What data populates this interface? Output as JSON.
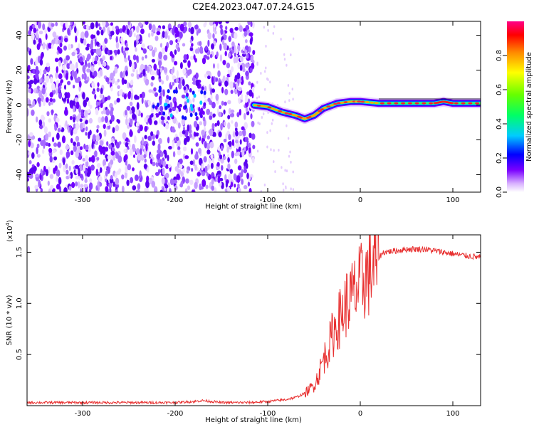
{
  "title": "C2E4.2023.047.07.24.G15",
  "chart_data": [
    {
      "type": "heatmap",
      "title": "C2E4.2023.047.07.24.G15",
      "xlabel": "Height of straight line (km)",
      "ylabel": "Frequency (Hz)",
      "xlim": [
        -360,
        130
      ],
      "ylim": [
        -50,
        48
      ],
      "xticks": [
        -300,
        -200,
        -100,
        0,
        100
      ],
      "yticks": [
        -40,
        -20,
        0,
        20,
        40
      ],
      "noise_region_x": [
        -360,
        -115
      ],
      "signal_track": [
        {
          "x": -115,
          "y": 0
        },
        {
          "x": -100,
          "y": -1
        },
        {
          "x": -85,
          "y": -4
        },
        {
          "x": -70,
          "y": -6
        },
        {
          "x": -60,
          "y": -8
        },
        {
          "x": -50,
          "y": -6
        },
        {
          "x": -40,
          "y": -2
        },
        {
          "x": -25,
          "y": 1
        },
        {
          "x": -10,
          "y": 2
        },
        {
          "x": 0,
          "y": 2
        },
        {
          "x": 20,
          "y": 1
        },
        {
          "x": 50,
          "y": 1
        },
        {
          "x": 80,
          "y": 1
        },
        {
          "x": 90,
          "y": 2
        },
        {
          "x": 100,
          "y": 1
        },
        {
          "x": 130,
          "y": 1
        }
      ],
      "colorbar": {
        "label": "Normalized spectral amplitude",
        "range": [
          0,
          1
        ],
        "ticks": [
          "0.0",
          "0.2",
          "0.4",
          "0.6",
          "0.8"
        ]
      }
    },
    {
      "type": "line",
      "xlabel": "Height of straight line (km)",
      "ylabel": "SNR (10 * v/v)",
      "scale_label": "(x10",
      "scale_exp": "4",
      "scale_close": ")",
      "xlim": [
        -360,
        130
      ],
      "ylim": [
        0,
        1.67
      ],
      "xticks": [
        -300,
        -200,
        -100,
        0,
        100
      ],
      "yticks": [
        "0.5",
        "1.0",
        "1.5"
      ],
      "series": [
        {
          "name": "SNR",
          "color": "#e83030",
          "points": [
            [
              -360,
              0.03
            ],
            [
              -300,
              0.03
            ],
            [
              -250,
              0.03
            ],
            [
              -200,
              0.03
            ],
            [
              -180,
              0.04
            ],
            [
              -170,
              0.05
            ],
            [
              -150,
              0.03
            ],
            [
              -120,
              0.03
            ],
            [
              -100,
              0.04
            ],
            [
              -80,
              0.06
            ],
            [
              -70,
              0.08
            ],
            [
              -60,
              0.12
            ],
            [
              -50,
              0.2
            ],
            [
              -45,
              0.3
            ],
            [
              -40,
              0.45
            ],
            [
              -35,
              0.55
            ],
            [
              -30,
              0.7
            ],
            [
              -25,
              0.8
            ],
            [
              -20,
              0.9
            ],
            [
              -15,
              1.0
            ],
            [
              -10,
              1.05
            ],
            [
              -5,
              1.12
            ],
            [
              0,
              1.18
            ],
            [
              5,
              1.25
            ],
            [
              10,
              1.3
            ],
            [
              15,
              1.38
            ],
            [
              20,
              1.45
            ],
            [
              25,
              1.5
            ],
            [
              35,
              1.51
            ],
            [
              50,
              1.53
            ],
            [
              70,
              1.53
            ],
            [
              90,
              1.5
            ],
            [
              110,
              1.47
            ],
            [
              130,
              1.45
            ]
          ]
        }
      ]
    }
  ]
}
